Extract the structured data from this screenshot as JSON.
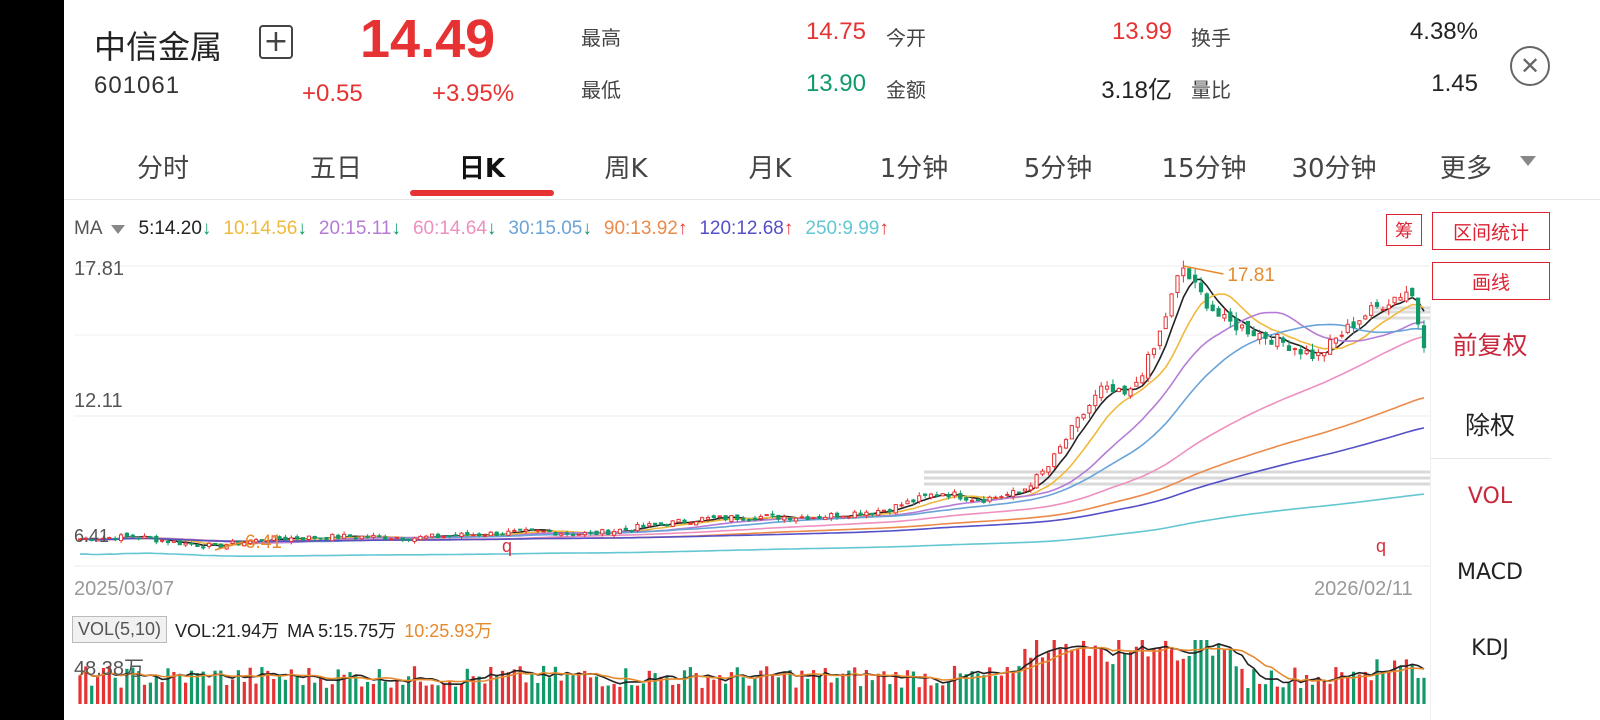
{
  "header": {
    "name": "中信金属",
    "code": "601061",
    "price": "14.49",
    "change": "+0.55",
    "change_pct": "+3.95%",
    "add_icon": "plus-square-icon",
    "close_icon": "close-circle-icon"
  },
  "quote": {
    "high_label": "最高",
    "high_value": "14.75",
    "open_label": "今开",
    "open_value": "13.99",
    "turnover_label": "换手",
    "turnover_value": "4.38%",
    "low_label": "最低",
    "low_value": "13.90",
    "amount_label": "金额",
    "amount_value": "3.18亿",
    "volratio_label": "量比",
    "volratio_value": "1.45"
  },
  "tabs": [
    {
      "label": "分时"
    },
    {
      "label": "五日"
    },
    {
      "label": "日K"
    },
    {
      "label": "周K"
    },
    {
      "label": "月K"
    },
    {
      "label": "1分钟"
    },
    {
      "label": "5分钟"
    },
    {
      "label": "15分钟"
    },
    {
      "label": "30分钟"
    },
    {
      "label": "更多"
    }
  ],
  "active_tab": "日K",
  "ma_legend": {
    "label": "MA",
    "items": [
      {
        "text": "5:14.20",
        "arrow": "↓",
        "dir": "down",
        "color": "#222222"
      },
      {
        "text": "10:14.56",
        "arrow": "↓",
        "dir": "down",
        "color": "#f0b93c"
      },
      {
        "text": "20:15.11",
        "arrow": "↓",
        "dir": "down",
        "color": "#b57cd6"
      },
      {
        "text": "60:14.64",
        "arrow": "↓",
        "dir": "down",
        "color": "#ef8fbf"
      },
      {
        "text": "30:15.05",
        "arrow": "↓",
        "dir": "down",
        "color": "#6aa3d8"
      },
      {
        "text": "90:13.92",
        "arrow": "↑",
        "dir": "up",
        "color": "#ec8a4a"
      },
      {
        "text": "120:12.68",
        "arrow": "↑",
        "dir": "up",
        "color": "#5550c8"
      },
      {
        "text": "250:9.99",
        "arrow": "↑",
        "dir": "up",
        "color": "#63c7d2"
      }
    ]
  },
  "side": {
    "chou": "筹",
    "range_stats": "区间统计",
    "draw_line": "画线",
    "forward_adjust": "前复权",
    "ex_rights": "除权",
    "vol": "VOL",
    "macd": "MACD",
    "kdj": "KDJ"
  },
  "chart": {
    "y_top": "17.81",
    "y_mid": "12.11",
    "y_bottom": "6.41",
    "max_marker": "17.81",
    "min_marker": "6.41",
    "q_marker": "q",
    "date_start": "2025/03/07",
    "date_end": "2026/02/11"
  },
  "volume": {
    "tag": "VOL(5,10)",
    "vol_text": "VOL:21.94万",
    "ma5_text": "MA 5:15.75万",
    "ma10_text": "10:25.93万",
    "max_label": "48.38万"
  },
  "colors": {
    "up": "#e63232",
    "down": "#119a68",
    "accent": "#d23040"
  },
  "chart_data": {
    "type": "candlestick",
    "title": "中信金属 日K",
    "x_range": [
      "2025/03/07",
      "2026/02/11"
    ],
    "ylim": [
      6.41,
      17.81
    ],
    "high": 17.81,
    "low": 6.41,
    "last_close": 14.49,
    "ma": {
      "5": 14.2,
      "10": 14.56,
      "20": 15.11,
      "30": 15.05,
      "60": 14.64,
      "90": 13.92,
      "120": 12.68,
      "250": 9.99
    },
    "trend_close": [
      [
        0,
        6.7
      ],
      [
        0.04,
        6.8
      ],
      [
        0.08,
        6.5
      ],
      [
        0.1,
        6.4
      ],
      [
        0.14,
        6.7
      ],
      [
        0.2,
        6.8
      ],
      [
        0.25,
        6.75
      ],
      [
        0.3,
        6.9
      ],
      [
        0.34,
        7.0
      ],
      [
        0.38,
        6.9
      ],
      [
        0.42,
        7.2
      ],
      [
        0.46,
        7.5
      ],
      [
        0.5,
        7.6
      ],
      [
        0.55,
        7.6
      ],
      [
        0.6,
        7.9
      ],
      [
        0.64,
        8.6
      ],
      [
        0.67,
        8.3
      ],
      [
        0.7,
        8.6
      ],
      [
        0.72,
        9.6
      ],
      [
        0.74,
        11.3
      ],
      [
        0.76,
        12.8
      ],
      [
        0.78,
        12.5
      ],
      [
        0.8,
        14.5
      ],
      [
        0.82,
        17.81
      ],
      [
        0.83,
        16.9
      ],
      [
        0.85,
        15.6
      ],
      [
        0.87,
        15.2
      ],
      [
        0.9,
        14.6
      ],
      [
        0.92,
        14.1
      ],
      [
        0.95,
        15.6
      ],
      [
        0.97,
        16.3
      ],
      [
        0.99,
        16.9
      ],
      [
        1.0,
        14.49
      ]
    ],
    "volume_max_label": "48.38万",
    "volume_unit": "万"
  }
}
